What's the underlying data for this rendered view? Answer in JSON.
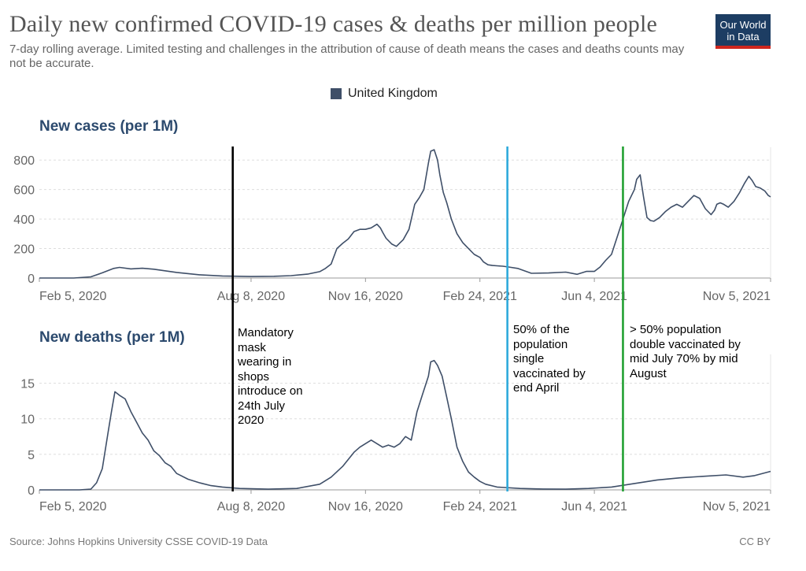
{
  "title": "Daily new confirmed COVID-19 cases & deaths per million people",
  "subtitle": "7-day rolling average. Limited testing and challenges in the attribution of cause of death means the cases and deaths counts may not be accurate.",
  "logo": {
    "line1": "Our World",
    "line2": "in Data",
    "bg_color": "#1d3d63",
    "accent_color": "#ce261e"
  },
  "source": "Source: Johns Hopkins University CSSE COVID-19 Data",
  "license": "CC BY",
  "annotations": {
    "mask": "Mandatory mask wearing in shops introduce on 24th July 2020",
    "single_vax": "50% of the population single vaccinated by end April",
    "double_vax": "> 50% population double vaccinated by mid July 70% by mid August"
  },
  "chart_data": [
    {
      "type": "line",
      "title": "New cases (per 1M)",
      "legend": [
        "United Kingdom"
      ],
      "series_color": "#3f4f68",
      "ylim": [
        0,
        860
      ],
      "yticks": [
        0,
        200,
        400,
        600,
        800
      ],
      "xticks": [
        {
          "label": "Feb 5, 2020",
          "day": 0
        },
        {
          "label": "Aug 8, 2020",
          "day": 185
        },
        {
          "label": "Nov 16, 2020",
          "day": 285
        },
        {
          "label": "Feb 24, 2021",
          "day": 385
        },
        {
          "label": "Jun 4, 2021",
          "day": 485
        },
        {
          "label": "Nov 5, 2021",
          "day": 639
        }
      ],
      "xlim": [
        0,
        639
      ],
      "series": [
        {
          "name": "United Kingdom",
          "x": [
            0,
            30,
            45,
            55,
            65,
            70,
            80,
            90,
            100,
            120,
            140,
            160,
            185,
            205,
            220,
            235,
            245,
            250,
            255,
            260,
            265,
            270,
            275,
            280,
            285,
            290,
            295,
            298,
            300,
            303,
            308,
            312,
            318,
            323,
            328,
            332,
            336,
            340,
            342,
            345,
            348,
            350,
            353,
            356,
            360,
            365,
            370,
            375,
            380,
            385,
            388,
            392,
            396,
            400,
            405,
            410,
            418,
            430,
            445,
            460,
            470,
            478,
            485,
            490,
            495,
            500,
            505,
            510,
            515,
            520,
            522,
            525,
            528,
            531,
            534,
            537,
            542,
            547,
            552,
            557,
            562,
            567,
            572,
            577,
            582,
            587,
            590,
            592,
            595,
            598,
            602,
            607,
            612,
            616,
            620,
            623,
            626,
            630,
            634,
            637,
            639
          ],
          "values": [
            0,
            0,
            8,
            35,
            65,
            72,
            62,
            66,
            60,
            38,
            22,
            14,
            10,
            12,
            16,
            27,
            43,
            65,
            95,
            200,
            235,
            265,
            315,
            330,
            330,
            340,
            365,
            340,
            310,
            270,
            230,
            215,
            260,
            330,
            500,
            545,
            600,
            780,
            860,
            870,
            800,
            700,
            580,
            510,
            400,
            300,
            240,
            200,
            160,
            140,
            110,
            90,
            85,
            83,
            80,
            75,
            65,
            32,
            34,
            40,
            25,
            45,
            45,
            75,
            120,
            160,
            280,
            400,
            520,
            600,
            670,
            700,
            550,
            410,
            390,
            385,
            410,
            450,
            480,
            500,
            480,
            520,
            560,
            540,
            470,
            430,
            460,
            500,
            510,
            500,
            480,
            520,
            580,
            640,
            690,
            660,
            620,
            610,
            590,
            560,
            550
          ]
        }
      ]
    },
    {
      "type": "line",
      "title": "New deaths (per 1M)",
      "legend": [
        "United Kingdom"
      ],
      "series_color": "#3f4f68",
      "ylim": [
        0,
        18.5
      ],
      "yticks": [
        0,
        5,
        10,
        15
      ],
      "xticks": [
        {
          "label": "Feb 5, 2020",
          "day": 0
        },
        {
          "label": "Aug 8, 2020",
          "day": 185
        },
        {
          "label": "Nov 16, 2020",
          "day": 285
        },
        {
          "label": "Feb 24, 2021",
          "day": 385
        },
        {
          "label": "Jun 4, 2021",
          "day": 485
        },
        {
          "label": "Nov 5, 2021",
          "day": 639
        }
      ],
      "xlim": [
        0,
        639
      ],
      "series": [
        {
          "name": "United Kingdom",
          "x": [
            0,
            35,
            45,
            50,
            55,
            60,
            63,
            66,
            70,
            75,
            80,
            85,
            90,
            95,
            100,
            105,
            110,
            115,
            120,
            130,
            140,
            150,
            160,
            175,
            200,
            225,
            245,
            255,
            265,
            275,
            280,
            285,
            290,
            295,
            300,
            305,
            310,
            315,
            320,
            325,
            330,
            335,
            340,
            342,
            345,
            348,
            352,
            356,
            360,
            365,
            370,
            375,
            380,
            385,
            390,
            400,
            420,
            440,
            460,
            480,
            500,
            520,
            540,
            560,
            580,
            600,
            615,
            625,
            639
          ],
          "values": [
            0,
            0,
            0.1,
            1,
            3,
            8,
            11,
            13.8,
            13.3,
            12.8,
            11,
            9.5,
            8,
            7,
            5.5,
            4.8,
            3.8,
            3.3,
            2.3,
            1.5,
            1,
            0.6,
            0.4,
            0.2,
            0.1,
            0.2,
            0.8,
            1.8,
            3.3,
            5.3,
            6,
            6.5,
            7,
            6.5,
            6,
            6.3,
            6,
            6.5,
            7.5,
            7,
            11,
            13.5,
            16,
            18,
            18.2,
            17.5,
            16,
            13,
            10,
            6,
            4,
            2.5,
            1.8,
            1.2,
            0.8,
            0.4,
            0.2,
            0.12,
            0.1,
            0.2,
            0.4,
            0.9,
            1.4,
            1.7,
            1.9,
            2.1,
            1.8,
            2.0,
            2.6
          ]
        }
      ]
    }
  ],
  "events": [
    {
      "label": "Mandatory mask wearing",
      "day": 169,
      "color": "#000000"
    },
    {
      "label": "50% single vaccinated",
      "day": 409,
      "color": "#2eaadc"
    },
    {
      "label": "> 50% double vaccinated",
      "day": 510,
      "color": "#22a032"
    }
  ]
}
